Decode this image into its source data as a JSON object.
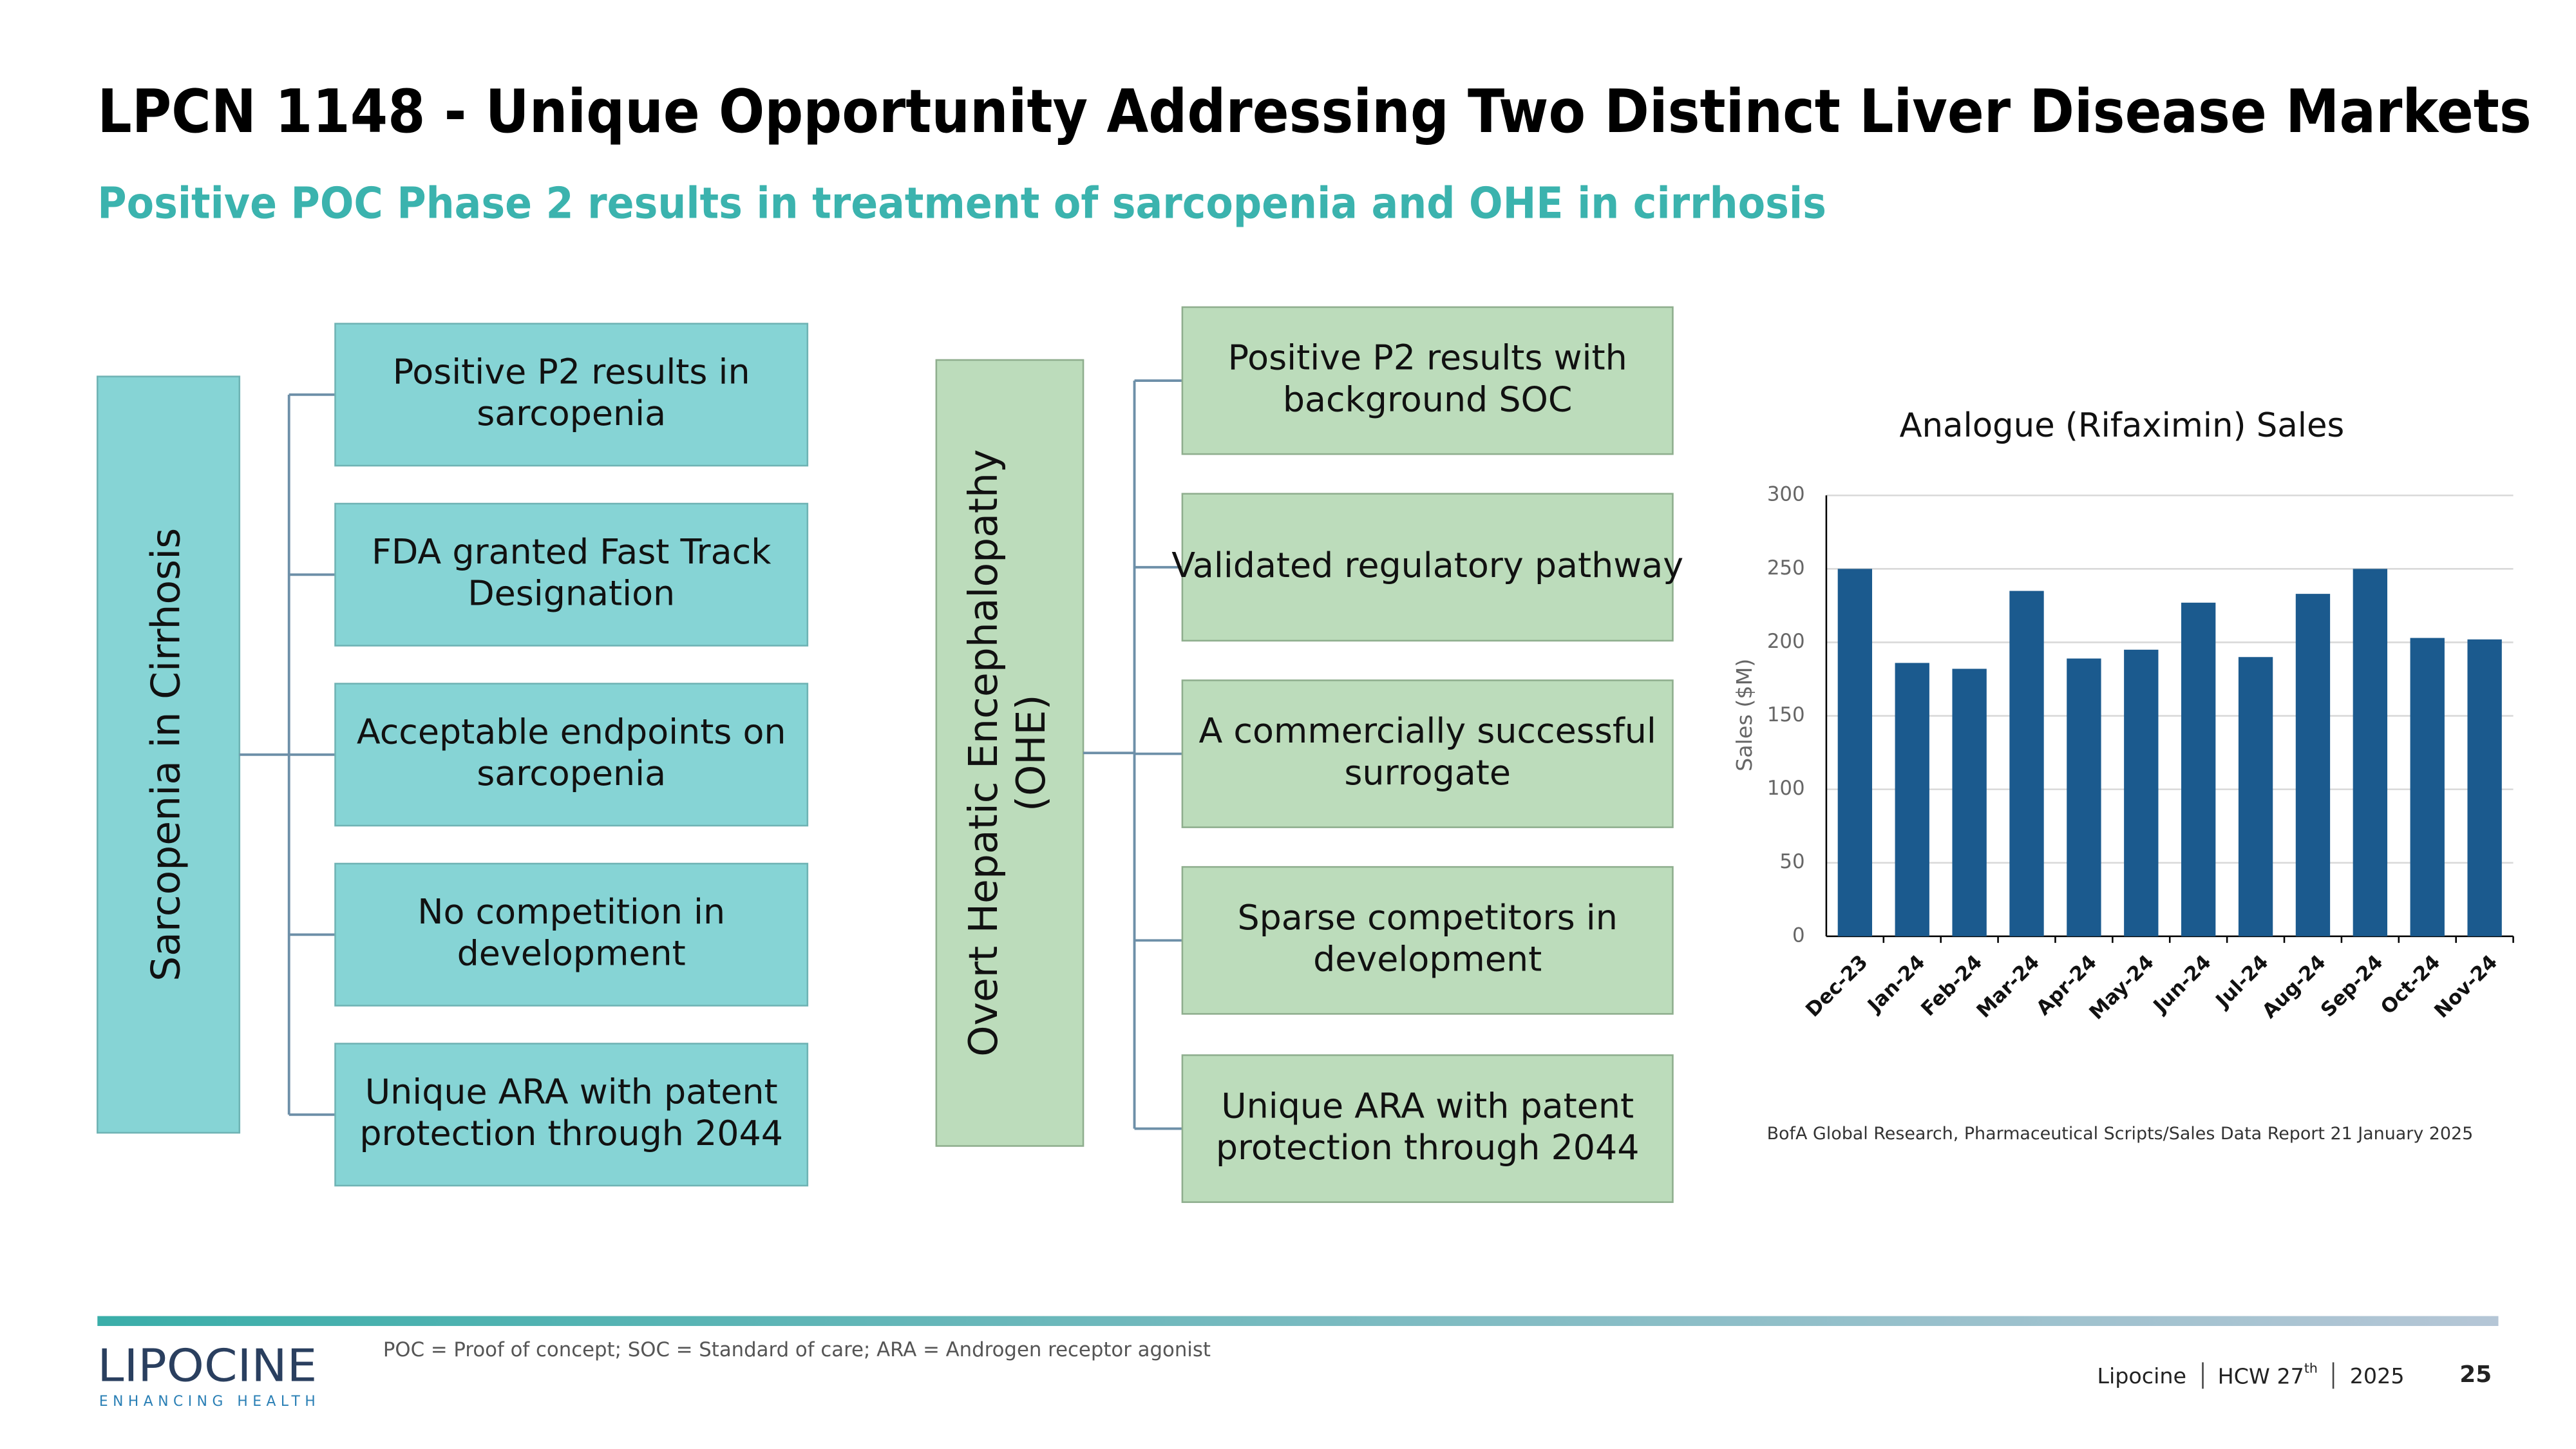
{
  "header": {
    "title": "LPCN 1148 - Unique Opportunity Addressing Two Distinct Liver Disease Markets",
    "subtitle": "Positive POC Phase 2 results in treatment of sarcopenia and OHE in cirrhosis"
  },
  "diagrams": [
    {
      "root": {
        "lines": [
          "Sarcopenia in Cirrhosis"
        ]
      },
      "branches": [
        {
          "lines": [
            "Positive P2 results in",
            "sarcopenia"
          ]
        },
        {
          "lines": [
            "FDA granted Fast Track",
            "Designation"
          ]
        },
        {
          "lines": [
            "Acceptable endpoints on",
            "sarcopenia"
          ]
        },
        {
          "lines": [
            "No competition in",
            "development"
          ]
        },
        {
          "lines": [
            "Unique ARA with patent",
            "protection through 2044"
          ]
        }
      ]
    },
    {
      "root": {
        "lines": [
          "Overt Hepatic Encephalopathy",
          "(OHE)"
        ]
      },
      "branches": [
        {
          "lines": [
            "Positive P2 results with",
            "background SOC"
          ]
        },
        {
          "lines": [
            "Validated regulatory pathway"
          ]
        },
        {
          "lines": [
            "A commercially successful",
            "surrogate"
          ]
        },
        {
          "lines": [
            "Sparse competitors in",
            "development"
          ]
        },
        {
          "lines": [
            "Unique ARA with patent",
            "protection through 2044"
          ]
        }
      ]
    }
  ],
  "chart_data": {
    "type": "bar",
    "title": "Analogue (Rifaximin) Sales",
    "y_label": "Sales ($M)",
    "categories": [
      "Dec-23",
      "Jan-24",
      "Feb-24",
      "Mar-24",
      "Apr-24",
      "May-24",
      "Jun-24",
      "Jul-24",
      "Aug-24",
      "Sep-24",
      "Oct-24",
      "Nov-24"
    ],
    "values": [
      250,
      186,
      182,
      235,
      189,
      195,
      227,
      190,
      233,
      250,
      203,
      202
    ],
    "color": "#1b5a8e",
    "ylim": [
      0,
      300
    ],
    "yticks": [
      0,
      50,
      100,
      150,
      200,
      250,
      300
    ],
    "grid": true
  },
  "source": "BofA Global Research, Pharmaceutical Scripts/Sales Data Report  21 January 2025",
  "footnote": "POC = Proof of concept; SOC = Standard of care; ARA = Androgen receptor agonist",
  "logo": {
    "name": "LIPOCINE",
    "tagline": "ENHANCING HEALTH"
  },
  "footer": {
    "company": "Lipocine",
    "event": {
      "text": "HCW 27",
      "superscript": "th"
    },
    "year": "2025",
    "page": "25"
  }
}
